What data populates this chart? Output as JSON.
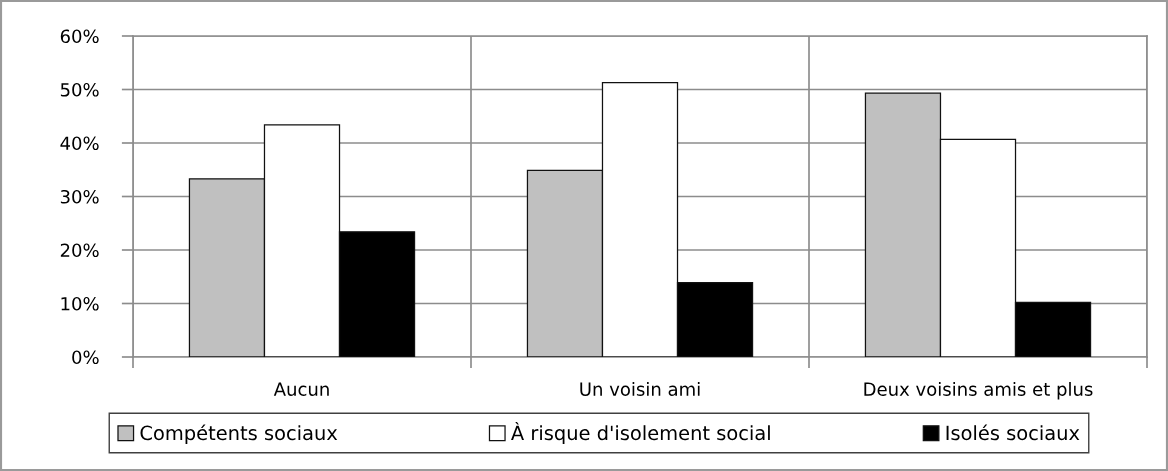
{
  "chart_data": {
    "type": "bar",
    "categories": [
      "Aucun",
      "Un voisin ami",
      "Deux voisins amis et plus"
    ],
    "series": [
      {
        "name": "Compétents sociaux",
        "color": "#c0c0c0",
        "values": [
          33.3,
          34.9,
          49.3
        ]
      },
      {
        "name": "À risque d'isolement social",
        "color": "#ffffff",
        "values": [
          43.4,
          51.3,
          40.7
        ]
      },
      {
        "name": "Isolés sociaux",
        "color": "#000000",
        "values": [
          23.4,
          13.9,
          10.2
        ]
      }
    ],
    "ylim": [
      0,
      60
    ],
    "yticks": [
      {
        "value": 0,
        "label": "0%"
      },
      {
        "value": 10,
        "label": "10%"
      },
      {
        "value": 20,
        "label": "20%"
      },
      {
        "value": 30,
        "label": "30%"
      },
      {
        "value": 40,
        "label": "40%"
      },
      {
        "value": 50,
        "label": "50%"
      },
      {
        "value": 60,
        "label": "60%"
      }
    ],
    "grid": true,
    "legend": "bottom"
  }
}
